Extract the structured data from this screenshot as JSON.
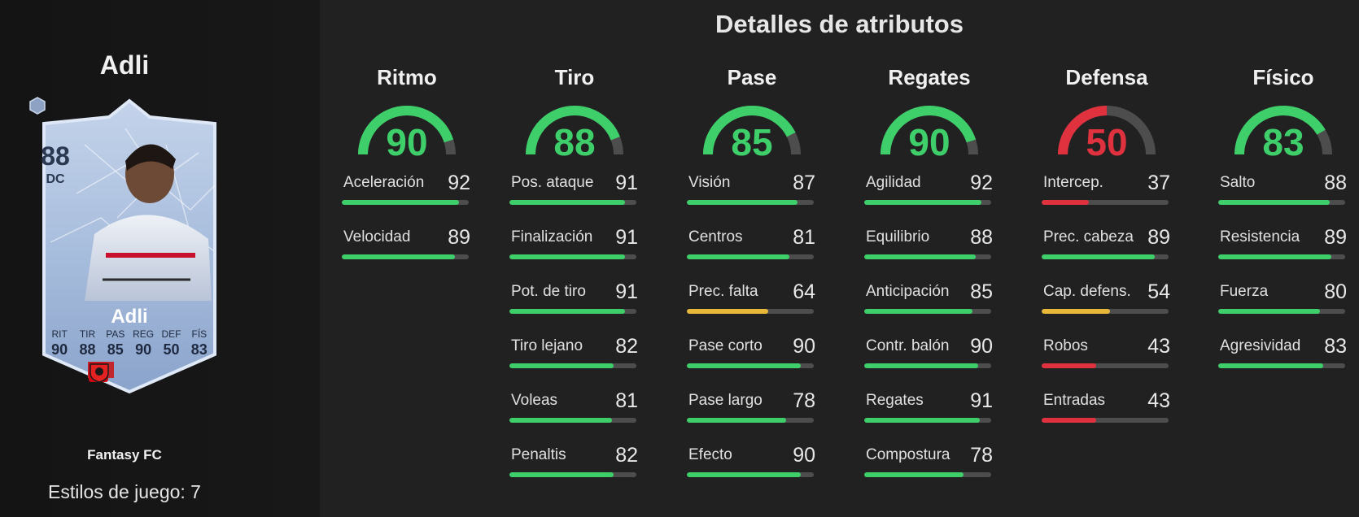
{
  "player": {
    "name": "Adli",
    "card": {
      "rating": "88",
      "position": "DC",
      "name": "Adli",
      "stat_labels": [
        "RIT",
        "TIR",
        "PAS",
        "REG",
        "DEF",
        "FÍS"
      ],
      "stat_values": [
        "90",
        "88",
        "85",
        "90",
        "50",
        "83"
      ],
      "flags": [
        "morocco-flag-icon",
        "bundesliga-logo-icon",
        "leverkusen-crest-icon"
      ]
    },
    "program": "Fantasy FC",
    "playstyles": "Estilos de juego: 7"
  },
  "header": {
    "title": "Detalles de atributos"
  },
  "colors": {
    "high": "#3ecf6b",
    "mid": "#e8b83a",
    "low": "#e0313f",
    "track": "#4d4d4d"
  },
  "categories": [
    {
      "name": "Ritmo",
      "value": 90,
      "tier": "high",
      "attributes": [
        {
          "label": "Aceleración",
          "value": 92,
          "tier": "high"
        },
        {
          "label": "Velocidad",
          "value": 89,
          "tier": "high"
        }
      ]
    },
    {
      "name": "Tiro",
      "value": 88,
      "tier": "high",
      "attributes": [
        {
          "label": "Pos. ataque",
          "value": 91,
          "tier": "high"
        },
        {
          "label": "Finalización",
          "value": 91,
          "tier": "high"
        },
        {
          "label": "Pot. de tiro",
          "value": 91,
          "tier": "high"
        },
        {
          "label": "Tiro lejano",
          "value": 82,
          "tier": "high"
        },
        {
          "label": "Voleas",
          "value": 81,
          "tier": "high"
        },
        {
          "label": "Penaltis",
          "value": 82,
          "tier": "high"
        }
      ]
    },
    {
      "name": "Pase",
      "value": 85,
      "tier": "high",
      "attributes": [
        {
          "label": "Visión",
          "value": 87,
          "tier": "high"
        },
        {
          "label": "Centros",
          "value": 81,
          "tier": "high"
        },
        {
          "label": "Prec. falta",
          "value": 64,
          "tier": "mid"
        },
        {
          "label": "Pase corto",
          "value": 90,
          "tier": "high"
        },
        {
          "label": "Pase largo",
          "value": 78,
          "tier": "high"
        },
        {
          "label": "Efecto",
          "value": 90,
          "tier": "high"
        }
      ]
    },
    {
      "name": "Regates",
      "value": 90,
      "tier": "high",
      "attributes": [
        {
          "label": "Agilidad",
          "value": 92,
          "tier": "high"
        },
        {
          "label": "Equilibrio",
          "value": 88,
          "tier": "high"
        },
        {
          "label": "Anticipación",
          "value": 85,
          "tier": "high"
        },
        {
          "label": "Contr. balón",
          "value": 90,
          "tier": "high"
        },
        {
          "label": "Regates",
          "value": 91,
          "tier": "high"
        },
        {
          "label": "Compostura",
          "value": 78,
          "tier": "high"
        }
      ]
    },
    {
      "name": "Defensa",
      "value": 50,
      "tier": "low",
      "attributes": [
        {
          "label": "Intercep.",
          "value": 37,
          "tier": "low"
        },
        {
          "label": "Prec. cabeza",
          "value": 89,
          "tier": "high"
        },
        {
          "label": "Cap. defens.",
          "value": 54,
          "tier": "mid"
        },
        {
          "label": "Robos",
          "value": 43,
          "tier": "low"
        },
        {
          "label": "Entradas",
          "value": 43,
          "tier": "low"
        }
      ]
    },
    {
      "name": "Físico",
      "value": 83,
      "tier": "high",
      "attributes": [
        {
          "label": "Salto",
          "value": 88,
          "tier": "high"
        },
        {
          "label": "Resistencia",
          "value": 89,
          "tier": "high"
        },
        {
          "label": "Fuerza",
          "value": 80,
          "tier": "high"
        },
        {
          "label": "Agresividad",
          "value": 83,
          "tier": "high"
        }
      ]
    }
  ]
}
